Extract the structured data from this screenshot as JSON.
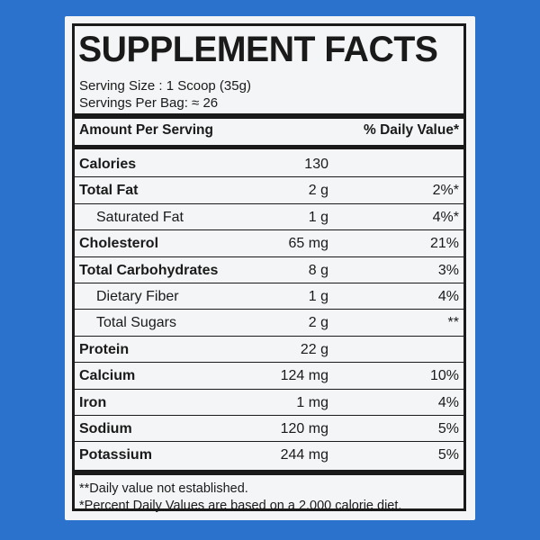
{
  "header": {
    "title": "SUPPLEMENT FACTS"
  },
  "serving": {
    "size": "Serving Size : 1 Scoop (35g)",
    "per_bag": "Servings Per Bag: ≈ 26"
  },
  "table": {
    "columns": [
      "Amount Per Serving",
      "% Daily Value*"
    ],
    "rows": [
      {
        "name": "Calories",
        "amount": "130"
      },
      {
        "name": "Total Fat",
        "amount": "2 g",
        "dv": "2%*"
      },
      {
        "name": "Saturated Fat",
        "amount": "1 g",
        "dv": "4%*",
        "indent": true
      },
      {
        "name": "Cholesterol",
        "amount": "65 mg",
        "dv": "21%"
      },
      {
        "name": "Total Carbohydrates",
        "amount": "8 g",
        "dv": "3%"
      },
      {
        "name": "Dietary Fiber",
        "amount": "1 g",
        "dv": "4%",
        "indent": true
      },
      {
        "name": "Total Sugars",
        "amount": "2 g",
        "dv": "**",
        "indent": true
      },
      {
        "name": "Protein",
        "amount": "22 g"
      },
      {
        "name": "Calcium",
        "amount": "124 mg",
        "dv": "10%"
      },
      {
        "name": "Iron",
        "amount": "1 mg",
        "dv": "4%"
      },
      {
        "name": "Sodium",
        "amount": "120 mg",
        "dv": "5%"
      },
      {
        "name": "Potassium",
        "amount": "244 mg",
        "dv": "5%"
      }
    ]
  },
  "footnotes": [
    "**Daily value not established.",
    "*Percent Daily Values are based on a 2,000 calorie diet."
  ]
}
